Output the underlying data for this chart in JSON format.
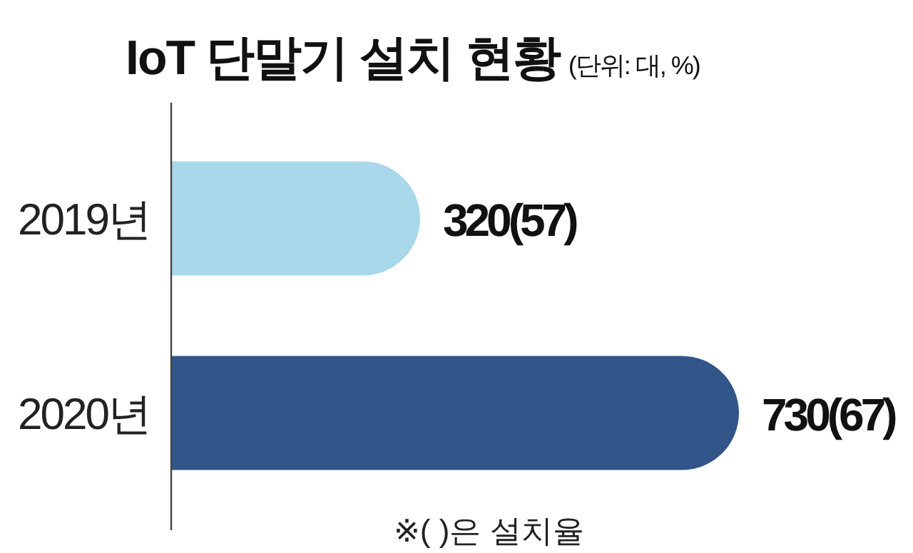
{
  "chart_data": {
    "type": "bar",
    "orientation": "horizontal",
    "title": "IoT 단말기 설치 현황",
    "subtitle": "(단위: 대, %)",
    "categories": [
      "2019년",
      "2020년"
    ],
    "values": [
      320,
      730
    ],
    "colors": [
      "#a8d8ea",
      "#32558a"
    ],
    "value_labels": [
      "320(57)",
      "730(67)"
    ],
    "annotations": [
      "※(    )은 설치율"
    ]
  }
}
